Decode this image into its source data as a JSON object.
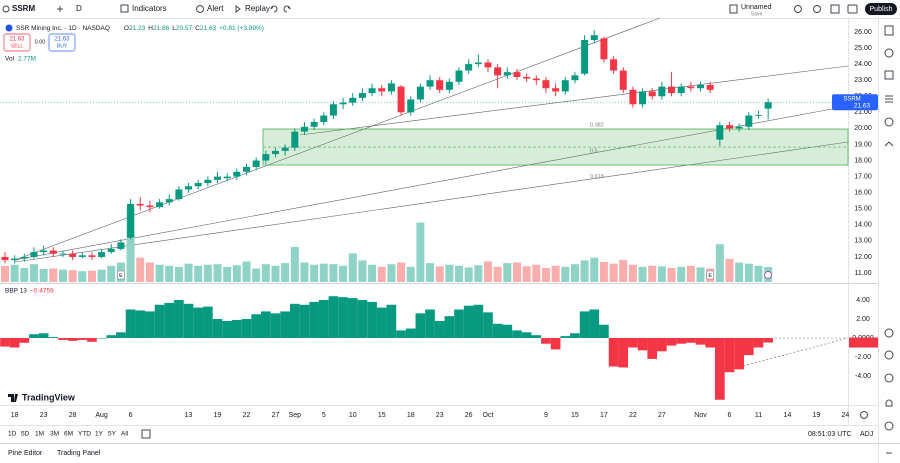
{
  "toolbar": {
    "symbol": "SSRM",
    "interval": "D",
    "indicators": "Indicators",
    "alert": "Alert",
    "replay": "Replay",
    "layout_name": "Unnamed",
    "layout_status": "Save",
    "publish": "Publish"
  },
  "legend": {
    "title": "SSR Mining Inc. · 1D · NASDAQ",
    "ohlc_letters": [
      "O",
      "H",
      "L",
      "C"
    ],
    "change": "+0.81 (+3.89%)",
    "vol_label": "Vol",
    "vol_value": "2.77M",
    "sell": "SELL",
    "buy": "BUY",
    "spread": "0.00"
  },
  "indicator": {
    "name": "BBP 13",
    "value": "−0.4759"
  },
  "earnings_marker": "E",
  "logo": "TradingView",
  "ranges": [
    "1D",
    "5D",
    "1M",
    "3M",
    "6M",
    "YTD",
    "1Y",
    "5Y",
    "All"
  ],
  "clock": "08:51:03 UTC",
  "adj": "ADJ",
  "tabs": [
    "Pine Editor",
    "Trading Panel"
  ],
  "chart_data": {
    "type": "candlestick",
    "categories": [
      null,
      "18",
      null,
      null,
      "23",
      null,
      null,
      "28",
      null,
      null,
      "Aug",
      null,
      null,
      "6",
      null,
      null,
      null,
      null,
      null,
      "13",
      null,
      null,
      "19",
      null,
      null,
      "22",
      null,
      null,
      "27",
      null,
      "Sep",
      null,
      null,
      "5",
      null,
      null,
      "10",
      null,
      null,
      "15",
      null,
      null,
      "18",
      null,
      null,
      "23",
      null,
      null,
      "26",
      null,
      "Oct",
      null,
      null,
      null,
      null,
      null,
      "9",
      null,
      null,
      "15",
      null,
      null,
      "17",
      null,
      null,
      "22",
      null,
      null,
      "27",
      null,
      null,
      null,
      "Nov",
      null,
      null,
      "6",
      null,
      null,
      "11",
      null
    ],
    "future_categories": [
      null,
      "14",
      null,
      null,
      "19",
      null,
      null,
      "24"
    ],
    "open": [
      12.0,
      11.8,
      11.9,
      12.0,
      12.3,
      12.4,
      12.2,
      12.2,
      12.0,
      12.1,
      12.0,
      12.3,
      12.5,
      13.2,
      15.3,
      15.2,
      15.1,
      15.4,
      15.6,
      16.2,
      16.4,
      16.6,
      16.8,
      16.9,
      17.0,
      17.3,
      17.6,
      18.0,
      18.4,
      18.6,
      18.8,
      19.8,
      20.1,
      20.4,
      20.8,
      21.5,
      21.6,
      21.9,
      22.2,
      22.5,
      22.3,
      22.6,
      21.0,
      21.8,
      22.6,
      23.0,
      22.4,
      22.9,
      23.6,
      24.0,
      24.1,
      23.8,
      23.3,
      23.5,
      23.2,
      23.1,
      23.0,
      22.5,
      22.3,
      23.0,
      23.4,
      25.5,
      25.6,
      24.3,
      23.6,
      22.4,
      21.5,
      22.3,
      22.0,
      22.6,
      22.2,
      22.6,
      22.5,
      22.7,
      19.3,
      20.2,
      20.0,
      20.1,
      20.8,
      21.23
    ],
    "high": [
      12.3,
      12.1,
      12.2,
      12.6,
      12.7,
      12.6,
      12.4,
      12.4,
      12.3,
      12.3,
      12.5,
      12.8,
      13.1,
      15.6,
      15.7,
      15.5,
      15.6,
      15.9,
      16.4,
      16.6,
      16.8,
      17.0,
      17.3,
      17.2,
      17.5,
      17.8,
      18.2,
      18.6,
      18.8,
      19.0,
      20.0,
      20.4,
      20.6,
      21.0,
      21.7,
      21.9,
      22.2,
      22.5,
      22.8,
      22.7,
      23.0,
      22.7,
      22.0,
      22.8,
      23.3,
      23.2,
      23.1,
      23.8,
      24.3,
      24.6,
      24.3,
      24.0,
      23.8,
      23.7,
      23.4,
      23.3,
      23.2,
      22.8,
      23.2,
      23.5,
      25.8,
      26.1,
      25.7,
      24.5,
      23.8,
      22.6,
      22.5,
      22.5,
      22.9,
      23.5,
      22.8,
      22.9,
      22.9,
      22.9,
      20.4,
      20.4,
      20.3,
      21.0,
      21.1,
      21.86
    ],
    "low": [
      11.6,
      11.6,
      11.7,
      11.9,
      12.1,
      12.0,
      12.0,
      11.8,
      11.9,
      11.8,
      11.9,
      12.2,
      12.4,
      13.1,
      14.9,
      14.8,
      15.0,
      15.2,
      15.5,
      16.0,
      16.2,
      16.4,
      16.6,
      16.7,
      16.8,
      17.1,
      17.4,
      17.8,
      18.2,
      18.3,
      18.6,
      19.6,
      19.9,
      20.2,
      20.6,
      21.2,
      21.4,
      21.7,
      22.0,
      22.0,
      22.1,
      20.8,
      20.8,
      21.6,
      22.4,
      22.2,
      22.2,
      22.7,
      23.4,
      23.8,
      23.5,
      22.5,
      23.1,
      23.0,
      22.9,
      22.7,
      22.2,
      22.0,
      22.1,
      22.8,
      23.3,
      25.3,
      24.1,
      23.4,
      22.2,
      21.3,
      21.3,
      21.8,
      21.8,
      22.0,
      22.0,
      22.3,
      22.3,
      22.2,
      18.9,
      19.8,
      19.8,
      19.9,
      20.6,
      20.57
    ],
    "close": [
      11.8,
      11.9,
      12.0,
      12.3,
      12.4,
      12.2,
      12.2,
      12.0,
      12.1,
      12.0,
      12.3,
      12.5,
      12.9,
      15.3,
      15.2,
      15.1,
      15.4,
      15.6,
      16.2,
      16.4,
      16.6,
      16.8,
      17.0,
      17.0,
      17.3,
      17.6,
      18.0,
      18.4,
      18.6,
      18.8,
      19.8,
      20.1,
      20.4,
      20.8,
      21.5,
      21.6,
      21.9,
      22.2,
      22.5,
      22.3,
      22.8,
      21.0,
      21.8,
      22.6,
      23.0,
      22.4,
      22.9,
      23.6,
      24.0,
      24.1,
      23.8,
      23.3,
      23.5,
      23.2,
      23.1,
      23.0,
      22.5,
      22.3,
      23.0,
      23.3,
      25.5,
      25.8,
      24.3,
      23.6,
      22.4,
      21.5,
      22.3,
      22.0,
      22.6,
      22.2,
      22.6,
      22.5,
      22.7,
      22.4,
      20.2,
      20.0,
      20.1,
      20.8,
      20.82,
      21.63
    ],
    "volume": [
      3.0,
      3.2,
      2.6,
      3.3,
      2.4,
      2.5,
      2.3,
      2.2,
      2.0,
      2.1,
      2.3,
      3.0,
      3.6,
      13.8,
      4.5,
      3.6,
      3.2,
      3.0,
      2.8,
      3.4,
      3.0,
      3.2,
      3.3,
      2.8,
      3.1,
      3.8,
      2.5,
      3.3,
      3.0,
      3.5,
      6.5,
      3.6,
      3.2,
      3.4,
      3.3,
      3.0,
      5.3,
      4.0,
      3.2,
      2.8,
      3.3,
      3.6,
      2.8,
      11.0,
      3.5,
      2.9,
      3.2,
      3.0,
      2.7,
      3.1,
      3.8,
      2.8,
      3.5,
      3.6,
      2.9,
      3.2,
      2.6,
      3.0,
      2.8,
      3.3,
      4.0,
      4.5,
      3.7,
      3.4,
      4.1,
      3.2,
      2.8,
      3.0,
      2.9,
      2.6,
      2.8,
      3.0,
      2.7,
      2.5,
      7.0,
      4.3,
      3.6,
      3.4,
      3.0,
      2.77
    ],
    "bbp": [
      -0.9,
      -1.0,
      -0.5,
      0.4,
      0.5,
      0.1,
      -0.2,
      -0.3,
      -0.2,
      -0.4,
      0.0,
      0.3,
      0.6,
      3.0,
      2.9,
      2.8,
      3.5,
      3.7,
      4.0,
      3.6,
      3.2,
      3.3,
      2.0,
      1.8,
      1.9,
      2.0,
      2.5,
      2.8,
      2.6,
      2.8,
      3.6,
      3.5,
      3.8,
      4.0,
      4.4,
      4.3,
      4.2,
      4.0,
      3.8,
      3.2,
      3.5,
      0.8,
      1.0,
      2.6,
      3.0,
      1.8,
      2.3,
      3.0,
      3.4,
      3.5,
      2.7,
      1.5,
      1.4,
      0.8,
      0.6,
      0.3,
      -0.6,
      -1.2,
      0.2,
      0.5,
      2.8,
      3.0,
      1.4,
      -3.0,
      -3.1,
      -1.0,
      -1.3,
      -2.2,
      -1.4,
      -0.8,
      -0.6,
      -0.5,
      -0.7,
      -1.0,
      -6.5,
      -3.6,
      -3.3,
      -1.8,
      -1.0,
      -0.4759
    ],
    "up_color": "#089981",
    "down_color": "#f23645",
    "volume_up_color": "#8fd3c7",
    "volume_down_color": "#f7aeac",
    "ylim": [
      10.44,
      26.87
    ],
    "yticks": [
      {
        "value": 11,
        "label": "11.00"
      },
      {
        "value": 12,
        "label": "12.00"
      },
      {
        "value": 13,
        "label": "13.00"
      },
      {
        "value": 14,
        "label": "14.00"
      },
      {
        "value": 15,
        "label": "15.00"
      },
      {
        "value": 16,
        "label": "16.00"
      },
      {
        "value": 17,
        "label": "17.00"
      },
      {
        "value": 18,
        "label": "18.00"
      },
      {
        "value": 19,
        "label": "19.00"
      },
      {
        "value": 20,
        "label": "20.00"
      },
      {
        "value": 21,
        "label": "21.00"
      },
      {
        "value": 22,
        "label": "22.00"
      },
      {
        "value": 23,
        "label": "23.00"
      },
      {
        "value": 24,
        "label": "24.00"
      },
      {
        "value": 25,
        "label": "25.00"
      },
      {
        "value": 26,
        "label": "26.00"
      }
    ],
    "bbp_ylim": [
      -7.05,
      5.58
    ],
    "bbp_yticks": [
      {
        "value": -4,
        "label": "-4.00"
      },
      {
        "value": -2,
        "label": "-2.00"
      },
      {
        "value": 0,
        "label": "0.0000"
      },
      {
        "value": 2,
        "label": "2.00"
      },
      {
        "value": 4,
        "label": "4.00"
      }
    ],
    "zone": {
      "low": 17.72,
      "high": 19.96,
      "mid": 18.84
    },
    "fib_levels": [
      {
        "label": "0.382",
        "price": 20.2
      },
      {
        "label": "0.5",
        "price": 18.6
      },
      {
        "label": "0.618",
        "price": 17.0
      }
    ],
    "grid": false
  }
}
